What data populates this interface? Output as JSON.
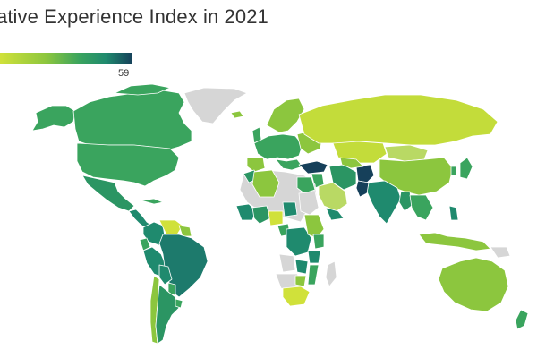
{
  "title": "ative Experience Index in 2021",
  "legend": {
    "max_label": "59",
    "colors": {
      "low": "#d0e13a",
      "lowmid": "#8cc63e",
      "mid": "#3aa45e",
      "midhigh": "#1f8a6e",
      "high": "#16566a",
      "no_data": "#d6d6d6"
    }
  }
}
